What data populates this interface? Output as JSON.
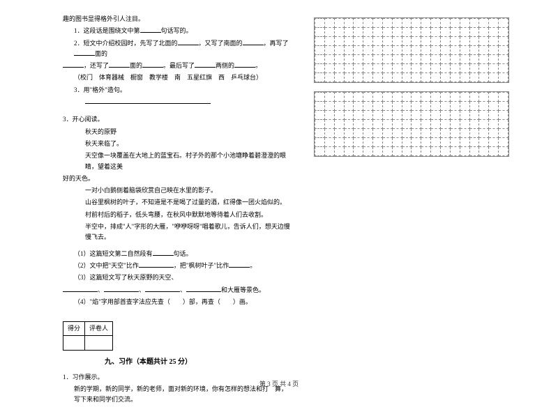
{
  "leftColumn": {
    "intro": "趣的图书显得格外引人注目。",
    "q1": "1．这段话是围绕文中第",
    "q1_tail": "句话写的。",
    "q2a": "2．短文中介绍校园时，先写了北面的",
    "q2b": "，又写了南面的",
    "q2c": "，再写了",
    "q2d": "面的",
    "q2e": "，还写了",
    "q2f": "面的",
    "q2g": "。最后写了",
    "q2h": "两侧的",
    "q2i": "。",
    "options": "（校门　体育器械　橱窗　教学楼　南　五星红旗　西　乒乓球台）",
    "q3": "3．用\"格外\"造句。",
    "reading_title": "3．开心阅读。",
    "poem_title": "秋天的原野",
    "poem_l1": "秋天来临了。",
    "poem_l2": "天空像一块覆盖在大地上的蓝宝石。村子外的那个小池塘睁着碧澄澄的眼睛，望着这美",
    "poem_l2b": "好的天色。",
    "poem_l3": "一对小白鹅侧着脑袋欣赏自己映在水里的影子。",
    "poem_l4": "山谷里枫树的叶子，不知道是不是喝了过量的酒，红得像一团火焰似的。",
    "poem_l5": "村前村后的稻子，低头弯腰，在秋风中默默地等待着人们去收割。",
    "poem_l6": "半空中，排成\"人\"字形的大雁，\"咿咿呀呀\"唱着歌儿，告诉人们，想天边慢慢飞去。",
    "rq1a": "（1）这篇短文第二自然段有",
    "rq1b": "句话。",
    "rq2a": "（2）文中把\"天空\"比作",
    "rq2b": "，把\"枫树叶子\"比作",
    "rq2c": "。",
    "rq3": "（3）这篇短文写了秋天原野的天空、",
    "rq3b": "、",
    "rq3c": "、",
    "rq3d": "、",
    "rq3e": "和大雁等景色。",
    "rq4": "（4）\"焰\"字用部首查字法应先查（　　）部，再查（　　）画。",
    "score_c1": "得分",
    "score_c2": "评卷人",
    "section9": "九、习作（本题共计 25 分）",
    "writing_title": "1．习作展示。",
    "writing_body": "新的学期，新的同学，新的老师，面对新的环境，你有怎样的想法和打　算，写下来和同学们交流。"
  },
  "footer": "第 3 页 共 4 页",
  "grid": {
    "rows": 7,
    "cols": 20
  },
  "style": {
    "bg": "#ffffff",
    "text": "#000000",
    "border": "#888888",
    "fontSize": 9
  }
}
